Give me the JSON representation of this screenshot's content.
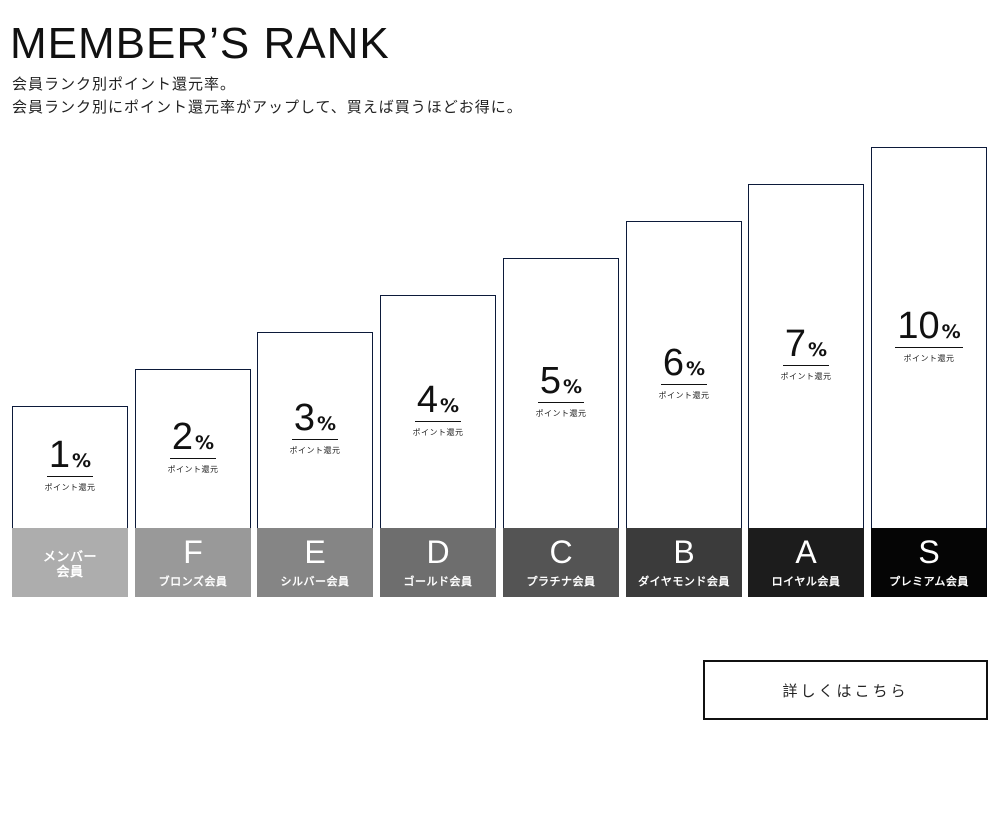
{
  "header": {
    "title": "MEMBER’S RANK",
    "subtitle_line1": "会員ランク別ポイント還元率。",
    "subtitle_line2": "会員ランク別にポイント還元率がアップして、買えば買うほどお得に。"
  },
  "chart_data": {
    "type": "bar",
    "unit": "%",
    "value_caption": "ポイント還元",
    "categories": [
      {
        "grade": "",
        "name": "メンバー\n会員"
      },
      {
        "grade": "F",
        "name": "ブロンズ会員"
      },
      {
        "grade": "E",
        "name": "シルバー会員"
      },
      {
        "grade": "D",
        "name": "ゴールド会員"
      },
      {
        "grade": "C",
        "name": "プラチナ会員"
      },
      {
        "grade": "B",
        "name": "ダイヤモンド会員"
      },
      {
        "grade": "A",
        "name": "ロイヤル会員"
      },
      {
        "grade": "S",
        "name": "プレミアム会員"
      }
    ],
    "values": [
      1,
      2,
      3,
      4,
      5,
      6,
      7,
      10
    ],
    "label_colors": [
      "#adadad",
      "#999999",
      "#858585",
      "#6e6e6e",
      "#545454",
      "#3b3b3b",
      "#1c1c1c",
      "#050505"
    ]
  },
  "footer": {
    "detail_button_label": "詳しくはこちら"
  }
}
